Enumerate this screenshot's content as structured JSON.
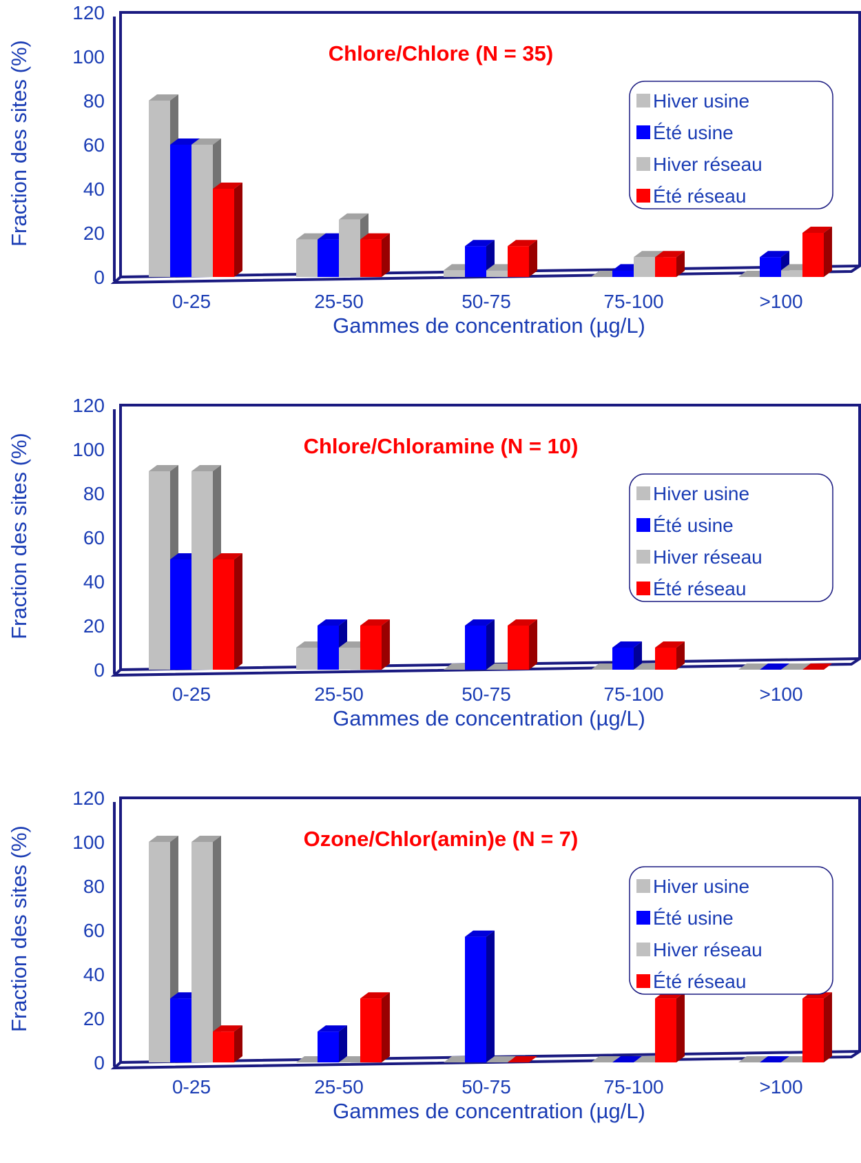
{
  "colors": {
    "axis": "#1a1a80",
    "label": "#1a3cb4",
    "title": "#ff0000",
    "hiver_usine": "#c0c0c0",
    "ete_usine": "#0000ff",
    "hiver_reseau": "#c0c0c0",
    "ete_reseau": "#ff0000"
  },
  "chart_data": [
    {
      "type": "bar",
      "title": "Chlore/Chlore (N = 35)",
      "xlabel": "Gammes de concentration (µg/L)",
      "ylabel": "Fraction des sites (%)",
      "ylim": [
        0,
        120
      ],
      "yticks": [
        "0",
        "20",
        "40",
        "60",
        "80",
        "100",
        "120"
      ],
      "categories": [
        "0-25",
        "25-50",
        "50-75",
        "75-100",
        ">100"
      ],
      "legend_position": "top-right",
      "series": [
        {
          "name": "Hiver usine",
          "values": [
            80,
            17,
            3,
            0,
            0
          ]
        },
        {
          "name": "Été usine",
          "values": [
            60,
            17,
            14,
            3,
            9
          ]
        },
        {
          "name": "Hiver réseau",
          "values": [
            60,
            26,
            3,
            9,
            3
          ]
        },
        {
          "name": "Été réseau",
          "values": [
            40,
            17,
            14,
            9,
            20
          ]
        }
      ]
    },
    {
      "type": "bar",
      "title": "Chlore/Chloramine (N = 10)",
      "xlabel": "Gammes de concentration (µg/L)",
      "ylabel": "Fraction des sites (%)",
      "ylim": [
        0,
        120
      ],
      "yticks": [
        "0",
        "20",
        "40",
        "60",
        "80",
        "100",
        "120"
      ],
      "categories": [
        "0-25",
        "25-50",
        "50-75",
        "75-100",
        ">100"
      ],
      "legend_position": "top-right",
      "series": [
        {
          "name": "Hiver usine",
          "values": [
            90,
            10,
            0,
            0,
            0
          ]
        },
        {
          "name": "Été usine",
          "values": [
            50,
            20,
            20,
            10,
            0
          ]
        },
        {
          "name": "Hiver réseau",
          "values": [
            90,
            10,
            0,
            0,
            0
          ]
        },
        {
          "name": "Été réseau",
          "values": [
            50,
            20,
            20,
            10,
            0
          ]
        }
      ]
    },
    {
      "type": "bar",
      "title": "Ozone/Chlor(amin)e (N = 7)",
      "xlabel": "Gammes de concentration (µg/L)",
      "ylabel": "Fraction des sites (%)",
      "ylim": [
        0,
        120
      ],
      "yticks": [
        "0",
        "20",
        "40",
        "60",
        "80",
        "100",
        "120"
      ],
      "categories": [
        "0-25",
        "25-50",
        "50-75",
        "75-100",
        ">100"
      ],
      "legend_position": "top-right",
      "series": [
        {
          "name": "Hiver usine",
          "values": [
            100,
            0,
            0,
            0,
            0
          ]
        },
        {
          "name": "Été usine",
          "values": [
            29,
            14,
            57,
            0,
            0
          ]
        },
        {
          "name": "Hiver réseau",
          "values": [
            100,
            0,
            0,
            0,
            0
          ]
        },
        {
          "name": "Été réseau",
          "values": [
            14,
            29,
            0,
            29,
            29
          ]
        }
      ]
    }
  ]
}
